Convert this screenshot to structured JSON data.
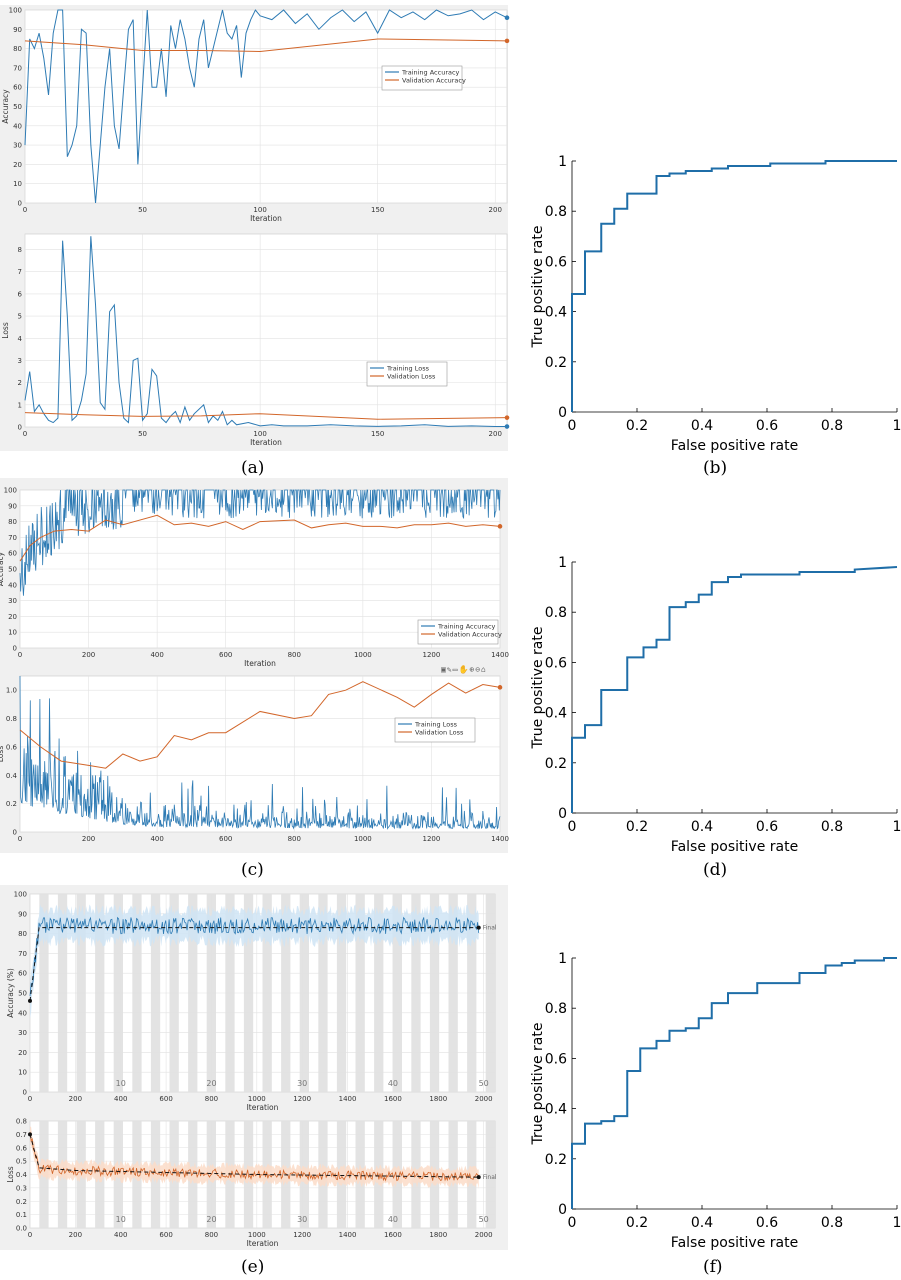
{
  "captions": [
    "(a)",
    "(b)",
    "(c)",
    "(d)",
    "(e)",
    "(f)"
  ],
  "toolbar_c": "▣✎▭✋⊕⊖⌂",
  "chart_data": [
    {
      "id": "a-acc",
      "type": "line",
      "xlabel": "Iteration",
      "ylabel": "Accuracy",
      "xlim": [
        0,
        205
      ],
      "ylim": [
        0,
        100
      ],
      "xticks": [
        0,
        50,
        100,
        150,
        200
      ],
      "yticks": [
        0,
        10,
        20,
        30,
        40,
        50,
        60,
        70,
        80,
        90,
        100
      ],
      "legend": "top-right",
      "series": [
        {
          "name": "Training Accuracy",
          "color": "#2e7bb4",
          "x": [
            0,
            2,
            4,
            6,
            8,
            10,
            12,
            14,
            16,
            18,
            20,
            22,
            24,
            26,
            28,
            30,
            32,
            34,
            36,
            38,
            40,
            42,
            44,
            46,
            48,
            50,
            52,
            54,
            56,
            58,
            60,
            62,
            64,
            66,
            68,
            70,
            72,
            74,
            76,
            78,
            80,
            82,
            84,
            86,
            88,
            90,
            92,
            94,
            96,
            98,
            100,
            105,
            110,
            115,
            120,
            125,
            130,
            135,
            140,
            145,
            150,
            155,
            160,
            165,
            170,
            175,
            180,
            185,
            190,
            195,
            200,
            205
          ],
          "y": [
            30,
            85,
            80,
            88,
            75,
            56,
            88,
            100,
            100,
            24,
            30,
            40,
            90,
            88,
            30,
            0,
            30,
            60,
            80,
            40,
            28,
            60,
            90,
            95,
            20,
            60,
            100,
            60,
            60,
            80,
            55,
            92,
            80,
            95,
            85,
            70,
            60,
            85,
            95,
            70,
            80,
            90,
            100,
            88,
            85,
            92,
            65,
            88,
            95,
            100,
            97,
            95,
            100,
            93,
            98,
            90,
            96,
            100,
            94,
            99,
            88,
            100,
            96,
            99,
            95,
            100,
            97,
            98,
            100,
            95,
            99,
            96
          ]
        },
        {
          "name": "Validation Accuracy",
          "color": "#d2662a",
          "x": [
            0,
            25,
            50,
            75,
            100,
            150,
            205
          ],
          "y": [
            84,
            82,
            79,
            79,
            78.5,
            85,
            84
          ]
        }
      ]
    },
    {
      "id": "a-loss",
      "type": "line",
      "xlabel": "Iteration",
      "ylabel": "Loss",
      "xlim": [
        0,
        205
      ],
      "ylim": [
        0,
        8.7
      ],
      "xticks": [
        0,
        50,
        100,
        150,
        200
      ],
      "yticks": [
        0,
        1,
        2,
        3,
        4,
        5,
        6,
        7,
        8
      ],
      "legend": "bottom-right",
      "series": [
        {
          "name": "Training Loss",
          "color": "#2e7bb4",
          "x": [
            0,
            2,
            4,
            6,
            8,
            10,
            12,
            14,
            16,
            18,
            20,
            22,
            24,
            26,
            28,
            30,
            32,
            34,
            36,
            38,
            40,
            42,
            44,
            46,
            48,
            50,
            52,
            54,
            56,
            58,
            60,
            62,
            64,
            66,
            68,
            70,
            72,
            74,
            76,
            78,
            80,
            82,
            84,
            86,
            88,
            90,
            95,
            100,
            105,
            110,
            120,
            130,
            140,
            150,
            160,
            170,
            180,
            190,
            200,
            205
          ],
          "y": [
            1.2,
            2.5,
            0.7,
            1.0,
            0.6,
            0.3,
            0.2,
            0.4,
            8.4,
            5.0,
            0.3,
            0.5,
            1.2,
            2.4,
            8.6,
            5.5,
            1.1,
            0.8,
            5.2,
            5.5,
            2.0,
            0.4,
            0.2,
            3.0,
            3.1,
            0.3,
            0.6,
            2.6,
            2.3,
            0.4,
            0.2,
            0.5,
            0.7,
            0.2,
            0.9,
            0.3,
            0.6,
            0.8,
            1.0,
            0.2,
            0.5,
            0.3,
            0.7,
            0.1,
            0.3,
            0.1,
            0.2,
            0.05,
            0.1,
            0.05,
            0.05,
            0.1,
            0.05,
            0.03,
            0.05,
            0.1,
            0.03,
            0.05,
            0.02,
            0.02
          ]
        },
        {
          "name": "Validation Loss",
          "color": "#d2662a",
          "x": [
            0,
            25,
            50,
            75,
            100,
            150,
            205
          ],
          "y": [
            0.65,
            0.55,
            0.48,
            0.5,
            0.6,
            0.35,
            0.42
          ]
        }
      ]
    },
    {
      "id": "b-roc",
      "type": "line",
      "xlabel": "False positive rate",
      "ylabel": "True positive rate",
      "xlim": [
        0,
        1
      ],
      "ylim": [
        0,
        1
      ],
      "xticks": [
        0,
        0.2,
        0.4,
        0.6,
        0.8,
        1
      ],
      "yticks": [
        0,
        0.2,
        0.4,
        0.6,
        0.8,
        1
      ],
      "series": [
        {
          "color": "#1f6ea8",
          "x": [
            0,
            0,
            0.04,
            0.04,
            0.09,
            0.09,
            0.13,
            0.13,
            0.17,
            0.17,
            0.26,
            0.26,
            0.3,
            0.3,
            0.35,
            0.35,
            0.43,
            0.43,
            0.48,
            0.48,
            0.61,
            0.61,
            0.78,
            0.78,
            1
          ],
          "y": [
            0,
            0.47,
            0.47,
            0.64,
            0.64,
            0.75,
            0.75,
            0.81,
            0.81,
            0.87,
            0.87,
            0.94,
            0.94,
            0.95,
            0.95,
            0.96,
            0.96,
            0.97,
            0.97,
            0.98,
            0.98,
            0.99,
            0.99,
            1,
            1
          ]
        }
      ]
    },
    {
      "id": "c-acc",
      "type": "line",
      "xlabel": "Iteration",
      "ylabel": "Accuracy",
      "xlim": [
        0,
        1400
      ],
      "ylim": [
        0,
        100
      ],
      "xticks": [
        0,
        200,
        400,
        600,
        800,
        1000,
        1200,
        1400
      ],
      "yticks": [
        0,
        10,
        20,
        30,
        40,
        50,
        60,
        70,
        80,
        90,
        100
      ],
      "legend": "bottom-right",
      "series": [
        {
          "name": "Training Accuracy",
          "color": "#2e7bb4",
          "style": "noisy-high",
          "x": [
            0,
            30,
            60,
            100,
            150,
            200,
            250,
            300,
            400,
            600,
            800,
            1000,
            1200,
            1400
          ],
          "y": [
            45,
            60,
            70,
            80,
            88,
            92,
            94,
            96,
            97,
            97,
            97,
            97,
            97,
            97
          ]
        },
        {
          "name": "Validation Accuracy",
          "color": "#d2662a",
          "x": [
            0,
            30,
            60,
            100,
            150,
            200,
            250,
            300,
            400,
            450,
            500,
            550,
            600,
            650,
            700,
            800,
            850,
            900,
            950,
            1000,
            1050,
            1100,
            1150,
            1200,
            1250,
            1300,
            1350,
            1400
          ],
          "y": [
            55,
            65,
            70,
            74,
            75,
            74,
            81,
            78,
            84,
            78,
            79,
            77,
            80,
            75,
            80,
            81,
            76,
            78,
            79,
            77,
            77,
            76,
            78,
            78,
            79,
            77,
            78,
            77
          ]
        }
      ]
    },
    {
      "id": "c-loss",
      "type": "line",
      "xlabel": "",
      "ylabel": "Loss",
      "xlim": [
        0,
        1400
      ],
      "ylim": [
        0,
        1.1
      ],
      "xticks": [
        0,
        200,
        400,
        600,
        800,
        1000,
        1200,
        1400
      ],
      "yticks": [
        0,
        0.2,
        0.4,
        0.6,
        0.8,
        1
      ],
      "legend": "top-right",
      "series": [
        {
          "name": "Training Loss",
          "color": "#2e7bb4",
          "style": "noisy-low",
          "x": [
            0,
            50,
            100,
            150,
            200,
            250,
            300,
            400,
            600,
            800,
            1000,
            1200,
            1400
          ],
          "y": [
            0.7,
            0.55,
            0.45,
            0.35,
            0.3,
            0.25,
            0.18,
            0.12,
            0.1,
            0.09,
            0.08,
            0.08,
            0.07
          ]
        },
        {
          "name": "Validation Loss",
          "color": "#d2662a",
          "x": [
            0,
            60,
            120,
            200,
            250,
            300,
            350,
            400,
            450,
            500,
            550,
            600,
            700,
            800,
            850,
            900,
            950,
            1000,
            1100,
            1150,
            1200,
            1250,
            1300,
            1350,
            1400
          ],
          "y": [
            0.72,
            0.6,
            0.5,
            0.47,
            0.45,
            0.55,
            0.5,
            0.53,
            0.68,
            0.65,
            0.7,
            0.7,
            0.85,
            0.8,
            0.82,
            0.97,
            1.0,
            1.06,
            0.95,
            0.88,
            0.97,
            1.05,
            0.98,
            1.04,
            1.02
          ]
        }
      ]
    },
    {
      "id": "d-roc",
      "type": "line",
      "xlabel": "False positive rate",
      "ylabel": "True positive rate",
      "xlim": [
        0,
        1
      ],
      "ylim": [
        0,
        1
      ],
      "xticks": [
        0,
        0.2,
        0.4,
        0.6,
        0.8,
        1
      ],
      "yticks": [
        0,
        0.2,
        0.4,
        0.6,
        0.8,
        1
      ],
      "series": [
        {
          "color": "#1f6ea8",
          "x": [
            0,
            0,
            0.04,
            0.04,
            0.09,
            0.09,
            0.17,
            0.17,
            0.22,
            0.22,
            0.26,
            0.26,
            0.3,
            0.3,
            0.35,
            0.35,
            0.39,
            0.39,
            0.43,
            0.43,
            0.48,
            0.48,
            0.52,
            0.52,
            0.7,
            0.7,
            0.87,
            0.87,
            1
          ],
          "y": [
            0,
            0.3,
            0.3,
            0.35,
            0.35,
            0.49,
            0.49,
            0.62,
            0.62,
            0.66,
            0.66,
            0.69,
            0.69,
            0.82,
            0.82,
            0.84,
            0.84,
            0.87,
            0.87,
            0.92,
            0.92,
            0.94,
            0.94,
            0.95,
            0.95,
            0.96,
            0.96,
            0.97,
            0.98
          ]
        }
      ]
    },
    {
      "id": "e-acc",
      "type": "line",
      "xlabel": "Iteration",
      "ylabel": "Accuracy (%)",
      "xlim": [
        0,
        2050
      ],
      "ylim": [
        0,
        100
      ],
      "xticks": [
        0,
        200,
        400,
        600,
        800,
        1000,
        1200,
        1400,
        1600,
        1800,
        2000
      ],
      "yticks": [
        0,
        10,
        20,
        30,
        40,
        50,
        60,
        70,
        80,
        90,
        100
      ],
      "epoch_labels": [
        "10",
        "20",
        "30",
        "40",
        "50"
      ],
      "epoch_x": [
        400,
        800,
        1200,
        1600,
        2000
      ],
      "final_label": "Final",
      "series": [
        {
          "color": "#2e7bb4",
          "style": "noisy-band",
          "band_color": "#cfe4f5",
          "x": [
            0,
            40,
            80,
            2050
          ],
          "y": [
            46,
            84,
            84,
            84
          ]
        },
        {
          "color": "#000000",
          "style": "dashed",
          "x": [
            0,
            40,
            2050
          ],
          "y": [
            46,
            83,
            83
          ]
        }
      ]
    },
    {
      "id": "e-loss",
      "type": "line",
      "xlabel": "Iteration",
      "ylabel": "Loss",
      "xlim": [
        0,
        2050
      ],
      "ylim": [
        0,
        0.8
      ],
      "xticks": [
        0,
        200,
        400,
        600,
        800,
        1000,
        1200,
        1400,
        1600,
        1800,
        2000
      ],
      "yticks": [
        0,
        0.1,
        0.2,
        0.3,
        0.4,
        0.5,
        0.6,
        0.7,
        0.8
      ],
      "epoch_labels": [
        "10",
        "20",
        "30",
        "40",
        "50"
      ],
      "epoch_x": [
        400,
        800,
        1200,
        1600,
        2000
      ],
      "final_label": "Final",
      "series": [
        {
          "color": "#d2662a",
          "style": "noisy-band",
          "band_color": "#fbdcc8",
          "x": [
            0,
            40,
            200,
            1000,
            2050
          ],
          "y": [
            0.7,
            0.44,
            0.43,
            0.4,
            0.38
          ]
        },
        {
          "color": "#000000",
          "style": "dashed",
          "x": [
            0,
            40,
            200,
            1000,
            2050
          ],
          "y": [
            0.7,
            0.45,
            0.43,
            0.4,
            0.38
          ]
        }
      ]
    },
    {
      "id": "f-roc",
      "type": "line",
      "xlabel": "False positive rate",
      "ylabel": "True positive rate",
      "xlim": [
        0,
        1
      ],
      "ylim": [
        0,
        1
      ],
      "xticks": [
        0,
        0.2,
        0.4,
        0.6,
        0.8,
        1
      ],
      "yticks": [
        0,
        0.2,
        0.4,
        0.6,
        0.8,
        1
      ],
      "series": [
        {
          "color": "#1f6ea8",
          "x": [
            0,
            0,
            0.04,
            0.04,
            0.09,
            0.09,
            0.13,
            0.13,
            0.17,
            0.17,
            0.21,
            0.21,
            0.26,
            0.26,
            0.3,
            0.3,
            0.35,
            0.35,
            0.39,
            0.39,
            0.43,
            0.43,
            0.48,
            0.48,
            0.57,
            0.57,
            0.7,
            0.7,
            0.78,
            0.78,
            0.83,
            0.83,
            0.87,
            0.87,
            0.96,
            0.96,
            1
          ],
          "y": [
            0,
            0.26,
            0.26,
            0.34,
            0.34,
            0.35,
            0.35,
            0.37,
            0.37,
            0.55,
            0.55,
            0.64,
            0.64,
            0.67,
            0.67,
            0.71,
            0.71,
            0.72,
            0.72,
            0.76,
            0.76,
            0.82,
            0.82,
            0.86,
            0.86,
            0.9,
            0.9,
            0.94,
            0.94,
            0.97,
            0.97,
            0.98,
            0.98,
            0.99,
            0.99,
            1,
            1
          ]
        }
      ]
    }
  ]
}
